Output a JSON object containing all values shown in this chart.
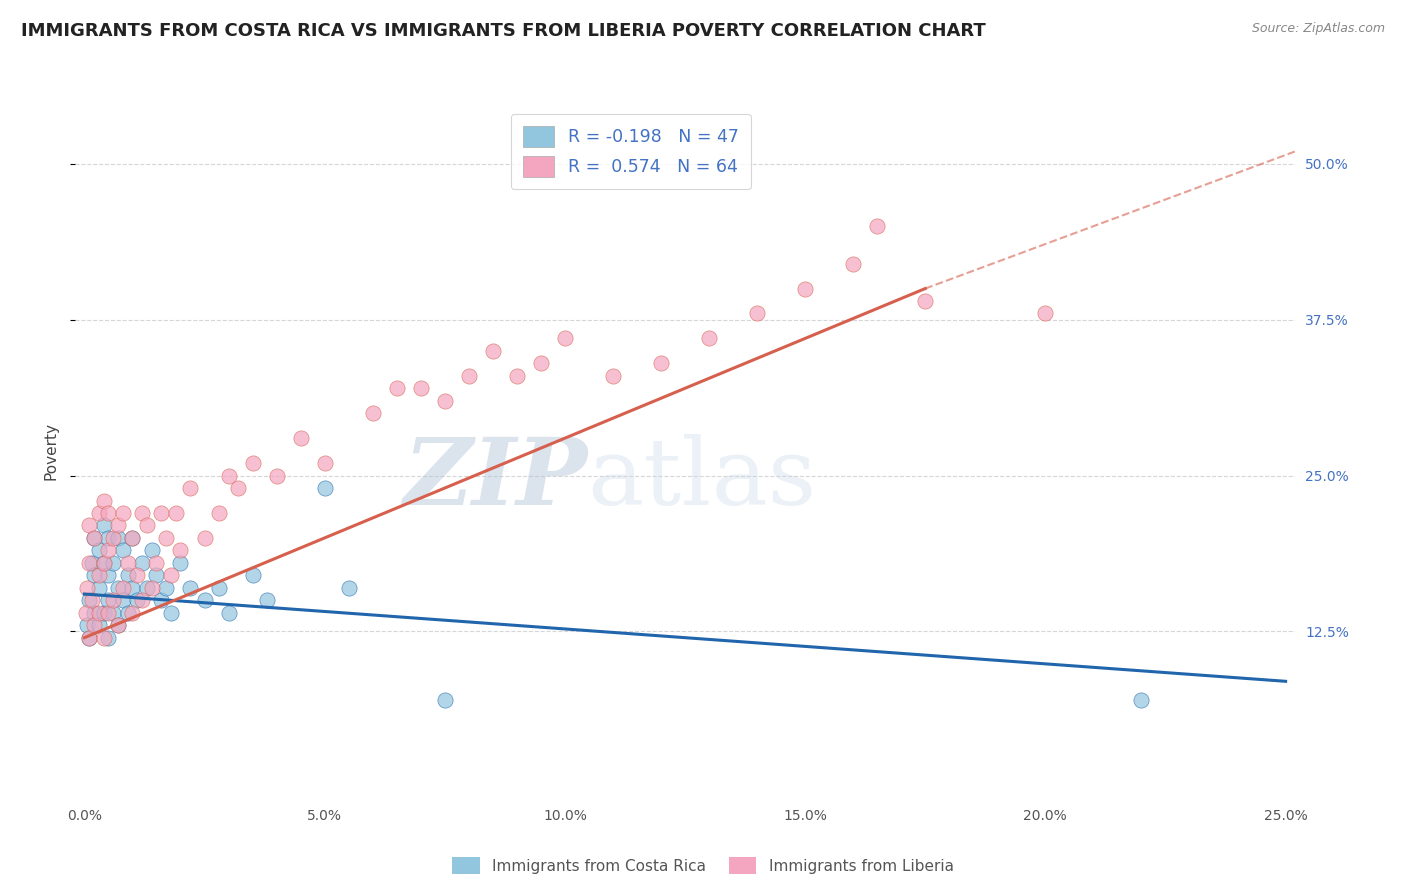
{
  "title": "IMMIGRANTS FROM COSTA RICA VS IMMIGRANTS FROM LIBERIA POVERTY CORRELATION CHART",
  "source_text": "Source: ZipAtlas.com",
  "ylabel": "Poverty",
  "xlim": [
    -0.002,
    0.252
  ],
  "ylim": [
    -0.01,
    0.55
  ],
  "xticks": [
    0.0,
    0.05,
    0.1,
    0.15,
    0.2,
    0.25
  ],
  "xtick_labels": [
    "0.0%",
    "5.0%",
    "10.0%",
    "15.0%",
    "20.0%",
    "25.0%"
  ],
  "yticks_right": [
    0.125,
    0.25,
    0.375,
    0.5
  ],
  "ytick_labels_right": [
    "12.5%",
    "25.0%",
    "37.5%",
    "50.0%"
  ],
  "legend_label1": "Immigrants from Costa Rica",
  "legend_label2": "Immigrants from Liberia",
  "R1": -0.198,
  "N1": 47,
  "R2": 0.574,
  "N2": 64,
  "color1": "#92c5de",
  "color2": "#f4a6c0",
  "trendline1_color": "#2166ac",
  "trendline2_color": "#d6604d",
  "watermark_zip": "ZIP",
  "watermark_atlas": "atlas",
  "background_color": "#ffffff",
  "grid_color": "#cccccc",
  "title_color": "#222222",
  "title_fontsize": 13,
  "label_fontsize": 11,
  "tick_fontsize": 10,
  "costa_rica_x": [
    0.0005,
    0.001,
    0.001,
    0.0015,
    0.002,
    0.002,
    0.002,
    0.003,
    0.003,
    0.003,
    0.004,
    0.004,
    0.004,
    0.005,
    0.005,
    0.005,
    0.005,
    0.006,
    0.006,
    0.007,
    0.007,
    0.007,
    0.008,
    0.008,
    0.009,
    0.009,
    0.01,
    0.01,
    0.011,
    0.012,
    0.013,
    0.014,
    0.015,
    0.016,
    0.017,
    0.018,
    0.02,
    0.022,
    0.025,
    0.028,
    0.03,
    0.035,
    0.038,
    0.05,
    0.055,
    0.075,
    0.22
  ],
  "costa_rica_y": [
    0.13,
    0.15,
    0.12,
    0.18,
    0.14,
    0.17,
    0.2,
    0.13,
    0.16,
    0.19,
    0.14,
    0.18,
    0.21,
    0.12,
    0.15,
    0.17,
    0.2,
    0.14,
    0.18,
    0.13,
    0.16,
    0.2,
    0.15,
    0.19,
    0.14,
    0.17,
    0.16,
    0.2,
    0.15,
    0.18,
    0.16,
    0.19,
    0.17,
    0.15,
    0.16,
    0.14,
    0.18,
    0.16,
    0.15,
    0.16,
    0.14,
    0.17,
    0.15,
    0.24,
    0.16,
    0.07,
    0.07
  ],
  "liberia_x": [
    0.0003,
    0.0005,
    0.001,
    0.001,
    0.001,
    0.0015,
    0.002,
    0.002,
    0.003,
    0.003,
    0.003,
    0.004,
    0.004,
    0.004,
    0.005,
    0.005,
    0.005,
    0.006,
    0.006,
    0.007,
    0.007,
    0.008,
    0.008,
    0.009,
    0.01,
    0.01,
    0.011,
    0.012,
    0.012,
    0.013,
    0.014,
    0.015,
    0.016,
    0.017,
    0.018,
    0.019,
    0.02,
    0.022,
    0.025,
    0.028,
    0.03,
    0.032,
    0.035,
    0.04,
    0.045,
    0.05,
    0.06,
    0.065,
    0.07,
    0.075,
    0.08,
    0.085,
    0.09,
    0.095,
    0.1,
    0.11,
    0.12,
    0.13,
    0.14,
    0.15,
    0.16,
    0.165,
    0.175,
    0.2
  ],
  "liberia_y": [
    0.14,
    0.16,
    0.12,
    0.18,
    0.21,
    0.15,
    0.13,
    0.2,
    0.14,
    0.17,
    0.22,
    0.12,
    0.18,
    0.23,
    0.14,
    0.19,
    0.22,
    0.15,
    0.2,
    0.13,
    0.21,
    0.16,
    0.22,
    0.18,
    0.14,
    0.2,
    0.17,
    0.22,
    0.15,
    0.21,
    0.16,
    0.18,
    0.22,
    0.2,
    0.17,
    0.22,
    0.19,
    0.24,
    0.2,
    0.22,
    0.25,
    0.24,
    0.26,
    0.25,
    0.28,
    0.26,
    0.3,
    0.32,
    0.32,
    0.31,
    0.33,
    0.35,
    0.33,
    0.34,
    0.36,
    0.33,
    0.34,
    0.36,
    0.38,
    0.4,
    0.42,
    0.45,
    0.39,
    0.38
  ],
  "trendline1_x0": 0.0,
  "trendline1_x1": 0.25,
  "trendline1_y0": 0.155,
  "trendline1_y1": 0.085,
  "trendline2_x0": 0.0,
  "trendline2_x1": 0.175,
  "trendline2_y0": 0.12,
  "trendline2_y1": 0.4,
  "trendline2_dash_x0": 0.175,
  "trendline2_dash_x1": 0.252,
  "trendline2_dash_y0": 0.4,
  "trendline2_dash_y1": 0.51
}
